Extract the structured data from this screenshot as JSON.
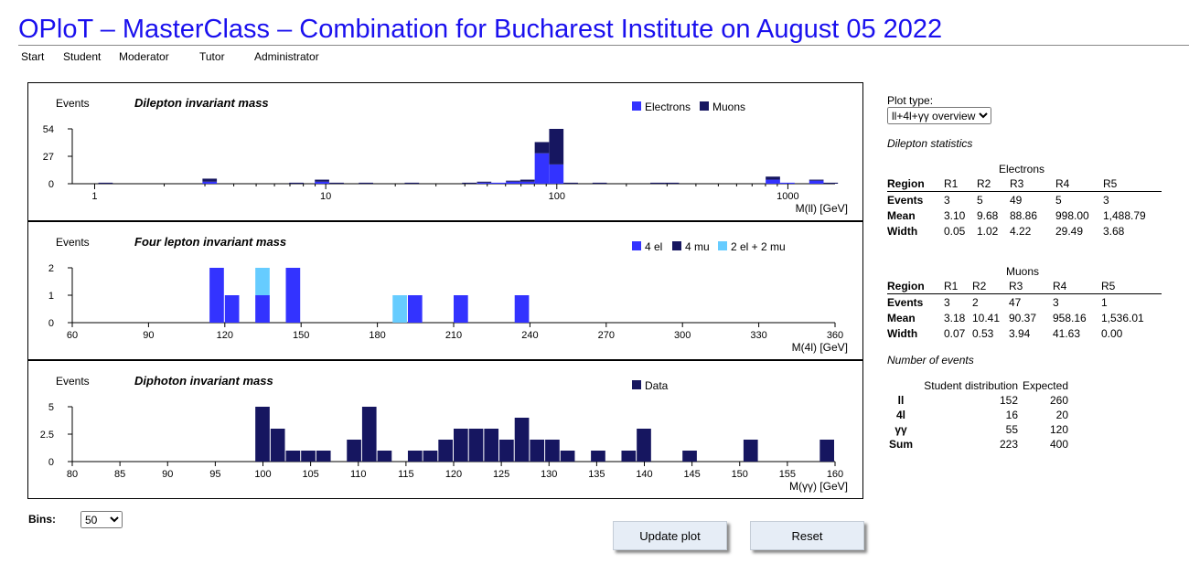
{
  "header": {
    "title": "OPloT – MasterClass – Combination for Bucharest Institute on August 05 2022"
  },
  "nav": {
    "items": [
      "Start",
      "Student",
      "Moderator",
      "Tutor",
      "Administrator"
    ]
  },
  "controls": {
    "plot_type_label": "Plot type:",
    "plot_type_value": "ll+4l+γγ overview",
    "bins_label": "Bins:",
    "bins_value": "50",
    "update_button": "Update plot",
    "reset_button": "Reset"
  },
  "colors": {
    "electrons": "#3333ff",
    "muons": "#161660",
    "el4": "#3333ff",
    "mu4": "#161660",
    "mixed": "#66ccff",
    "data": "#161660",
    "title": "#1a10ee"
  },
  "chart_data": [
    {
      "type": "bar",
      "stacked": true,
      "title": "Dilepton invariant mass",
      "ylabel": "Events",
      "xlabel": "M(ll) [GeV]",
      "xscale": "log",
      "xlim": [
        0.8,
        1600
      ],
      "ylim": [
        0,
        54
      ],
      "yticks": [
        "0",
        "27",
        "54"
      ],
      "xticks": [
        "1",
        "10",
        "100",
        "1000"
      ],
      "legend": [
        "Electrons",
        "Muons"
      ],
      "legend_position": "top-right",
      "bin_width_log": 0.0661,
      "bins": [
        {
          "x": 1.12,
          "e": 0,
          "m": 1
        },
        {
          "x": 3.16,
          "e": 2,
          "m": 3
        },
        {
          "x": 7.5,
          "e": 0,
          "m": 1
        },
        {
          "x": 9.68,
          "e": 2,
          "m": 2
        },
        {
          "x": 11.2,
          "e": 0,
          "m": 1
        },
        {
          "x": 15.0,
          "e": 0,
          "m": 1
        },
        {
          "x": 23.7,
          "e": 0,
          "m": 1
        },
        {
          "x": 42.0,
          "e": 0,
          "m": 1
        },
        {
          "x": 48.7,
          "e": 1,
          "m": 1
        },
        {
          "x": 56.2,
          "e": 1,
          "m": 0
        },
        {
          "x": 65.0,
          "e": 2,
          "m": 1
        },
        {
          "x": 75.0,
          "e": 2,
          "m": 2
        },
        {
          "x": 86.6,
          "e": 30,
          "m": 11
        },
        {
          "x": 100.0,
          "e": 19,
          "m": 35
        },
        {
          "x": 115.5,
          "e": 0,
          "m": 1
        },
        {
          "x": 154.0,
          "e": 0,
          "m": 1
        },
        {
          "x": 274.0,
          "e": 0,
          "m": 1
        },
        {
          "x": 316.0,
          "e": 0,
          "m": 1
        },
        {
          "x": 865.0,
          "e": 4,
          "m": 3
        },
        {
          "x": 1000.0,
          "e": 1,
          "m": 0
        },
        {
          "x": 1335.0,
          "e": 3,
          "m": 1
        },
        {
          "x": 1540.0,
          "e": 0,
          "m": 1
        }
      ]
    },
    {
      "type": "bar",
      "stacked": true,
      "title": "Four lepton invariant mass",
      "ylabel": "Events",
      "xlabel": "M(4l) [GeV]",
      "xlim": [
        60,
        360
      ],
      "ylim": [
        0,
        2
      ],
      "yticks": [
        "0",
        "1",
        "2"
      ],
      "xticks": [
        "60",
        "90",
        "120",
        "150",
        "180",
        "210",
        "240",
        "270",
        "300",
        "330",
        "360"
      ],
      "legend": [
        "4 el",
        "4 mu",
        "2 el + 2 mu"
      ],
      "legend_position": "top-right",
      "bin_width": 6,
      "bins": [
        {
          "x": 114,
          "el4": 2,
          "mu4": 0,
          "mix": 0
        },
        {
          "x": 120,
          "el4": 1,
          "mu4": 0,
          "mix": 0
        },
        {
          "x": 132,
          "el4": 1,
          "mu4": 0,
          "mix": 1
        },
        {
          "x": 144,
          "el4": 2,
          "mu4": 0,
          "mix": 0
        },
        {
          "x": 186,
          "el4": 0,
          "mu4": 0,
          "mix": 1
        },
        {
          "x": 192,
          "el4": 1,
          "mu4": 0,
          "mix": 0
        },
        {
          "x": 210,
          "el4": 1,
          "mu4": 0,
          "mix": 0
        },
        {
          "x": 234,
          "el4": 1,
          "mu4": 0,
          "mix": 0
        }
      ]
    },
    {
      "type": "bar",
      "title": "Diphoton invariant mass",
      "ylabel": "Events",
      "xlabel": "M(γγ) [GeV]",
      "xlim": [
        80,
        160
      ],
      "ylim": [
        0,
        5
      ],
      "yticks": [
        "0",
        "2.5",
        "5"
      ],
      "xticks": [
        "80",
        "85",
        "90",
        "95",
        "100",
        "105",
        "110",
        "115",
        "120",
        "125",
        "130",
        "135",
        "140",
        "145",
        "150",
        "155",
        "160"
      ],
      "legend": [
        "Data"
      ],
      "legend_position": "top-right",
      "bin_width": 1.6,
      "bins": [
        {
          "x": 99.2,
          "v": 5
        },
        {
          "x": 100.8,
          "v": 3
        },
        {
          "x": 102.4,
          "v": 1
        },
        {
          "x": 104.0,
          "v": 1
        },
        {
          "x": 105.6,
          "v": 1
        },
        {
          "x": 108.8,
          "v": 2
        },
        {
          "x": 110.4,
          "v": 5
        },
        {
          "x": 112.0,
          "v": 1
        },
        {
          "x": 115.2,
          "v": 1
        },
        {
          "x": 116.8,
          "v": 1
        },
        {
          "x": 118.4,
          "v": 2
        },
        {
          "x": 120.0,
          "v": 3
        },
        {
          "x": 121.6,
          "v": 3
        },
        {
          "x": 123.2,
          "v": 3
        },
        {
          "x": 124.8,
          "v": 2
        },
        {
          "x": 126.4,
          "v": 4
        },
        {
          "x": 128.0,
          "v": 2
        },
        {
          "x": 129.6,
          "v": 2
        },
        {
          "x": 131.2,
          "v": 1
        },
        {
          "x": 134.4,
          "v": 1
        },
        {
          "x": 137.6,
          "v": 1
        },
        {
          "x": 139.2,
          "v": 3
        },
        {
          "x": 144.0,
          "v": 1
        },
        {
          "x": 150.4,
          "v": 2
        },
        {
          "x": 158.4,
          "v": 2
        }
      ]
    }
  ],
  "dilepton_stats": {
    "heading": "Dilepton statistics",
    "region_label": "Region",
    "electrons": {
      "caption": "Electrons",
      "regions": [
        "R1",
        "R2",
        "R3",
        "R4",
        "R5"
      ],
      "rows": [
        {
          "label": "Events",
          "values": [
            "3",
            "5",
            "49",
            "5",
            "3"
          ]
        },
        {
          "label": "Mean",
          "values": [
            "3.10",
            "9.68",
            "88.86",
            "998.00",
            "1,488.79"
          ]
        },
        {
          "label": "Width",
          "values": [
            "0.05",
            "1.02",
            "4.22",
            "29.49",
            "3.68"
          ]
        }
      ]
    },
    "muons": {
      "caption": "Muons",
      "regions": [
        "R1",
        "R2",
        "R3",
        "R4",
        "R5"
      ],
      "rows": [
        {
          "label": "Events",
          "values": [
            "3",
            "2",
            "47",
            "3",
            "1"
          ]
        },
        {
          "label": "Mean",
          "values": [
            "3.18",
            "10.41",
            "90.37",
            "958.16",
            "1,536.01"
          ]
        },
        {
          "label": "Width",
          "values": [
            "0.07",
            "0.53",
            "3.94",
            "41.63",
            "0.00"
          ]
        }
      ]
    }
  },
  "number_of_events": {
    "heading": "Number of events",
    "col_student": "Student distribution",
    "col_expected": "Expected",
    "rows": [
      {
        "label": "ll",
        "student": "152",
        "expected": "260"
      },
      {
        "label": "4l",
        "student": "16",
        "expected": "20"
      },
      {
        "label": "γγ",
        "student": "55",
        "expected": "120"
      },
      {
        "label": "Sum",
        "student": "223",
        "expected": "400"
      }
    ]
  }
}
